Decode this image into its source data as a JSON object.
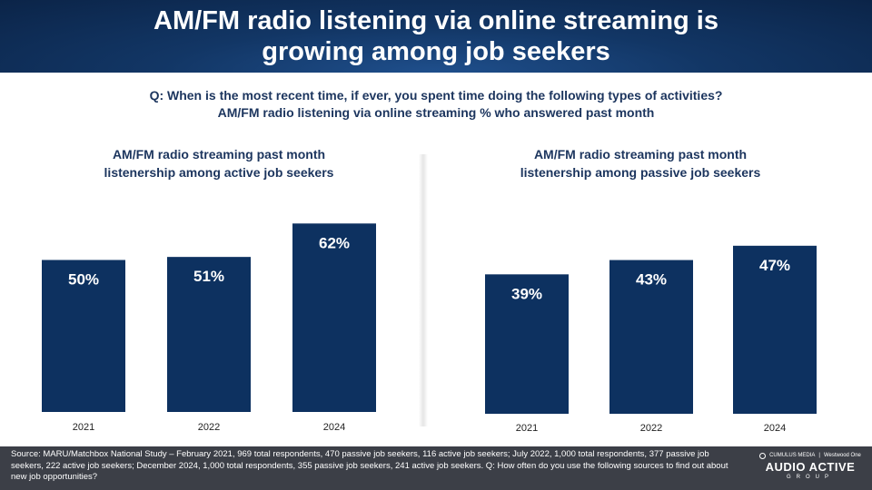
{
  "title_line1": "AM/FM radio listening via online streaming is",
  "title_line2": "growing among job seekers",
  "question_line1": "Q: When is the most recent time, if ever, you spent time doing the following types of activities?",
  "question_line2": "AM/FM radio listening via online streaming % who answered past month",
  "colors": {
    "bar": "#0d3160",
    "header": "#123665",
    "footer": "#3c3f47",
    "text": "#1c355e"
  },
  "chart_data": [
    {
      "type": "bar",
      "title_line1": "AM/FM radio streaming past month",
      "title_line2": "listenership among active job seekers",
      "categories": [
        "2021",
        "2022",
        "2024"
      ],
      "values": [
        50,
        51,
        62
      ],
      "labels": [
        "50%",
        "51%",
        "62%"
      ],
      "unit": "%"
    },
    {
      "type": "bar",
      "title_line1": "AM/FM radio streaming past month",
      "title_line2": "listenership among passive job seekers",
      "categories": [
        "2021",
        "2022",
        "2024"
      ],
      "values": [
        39,
        43,
        47
      ],
      "labels": [
        "39%",
        "43%",
        "47%"
      ],
      "unit": "%"
    }
  ],
  "footer": {
    "source": "Source: MARU/Matchbox National Study – February 2021, 969 total respondents, 470 passive job seekers, 116 active job seekers; July 2022, 1,000 total respondents, 377 passive job seekers, 222 active job seekers; December 2024, 1,000 total respondents, 355 passive job seekers, 241 active job seekers. Q: How often do you use the following sources to find out about new job opportunities?",
    "logo_top_left": "CUMULUS MEDIA",
    "logo_top_right": "Westwood One",
    "logo_main": "AUDIO ACTIVE",
    "logo_sub": "GROUP"
  }
}
